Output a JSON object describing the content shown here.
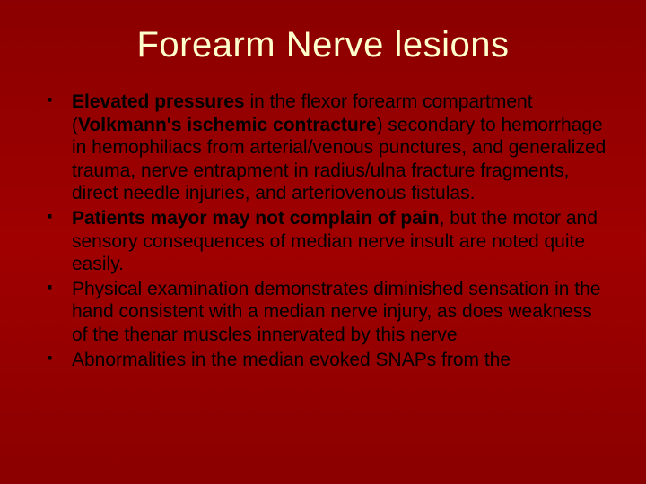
{
  "title": "Forearm Nerve lesions",
  "bullets": [
    {
      "segments": [
        {
          "text": "Elevated pressures",
          "bold": true
        },
        {
          "text": " in the flexor forearm compartment (",
          "bold": false
        },
        {
          "text": "Volkmann's ischemic contracture",
          "bold": true
        },
        {
          "text": ") secondary to hemorrhage in hemophiliacs from arterial/venous punctures, and generalized trauma, nerve entrapment in radius/ulna fracture fragments, direct needle injuries, and arteriovenous fistulas.",
          "bold": false
        }
      ]
    },
    {
      "segments": [
        {
          "text": "Patients mayor may not complain of pain",
          "bold": true
        },
        {
          "text": ", but the motor and sensory consequences of median nerve insult are noted quite easily.",
          "bold": false
        }
      ]
    },
    {
      "segments": [
        {
          "text": "Physical examination demonstrates diminished sensation in the hand consistent with a median nerve injury, as does weakness of the thenar muscles innervated by this nerve",
          "bold": false
        }
      ]
    },
    {
      "segments": [
        {
          "text": "Abnormalities in the median evoked SNAPs from the",
          "bold": false
        }
      ]
    }
  ],
  "colors": {
    "background_top": "#8b0000",
    "background_mid": "#a00000",
    "title_color": "#ffffcc",
    "text_color": "#000000"
  },
  "typography": {
    "title_fontsize": 40,
    "body_fontsize": 21,
    "font_family": "Verdana"
  }
}
